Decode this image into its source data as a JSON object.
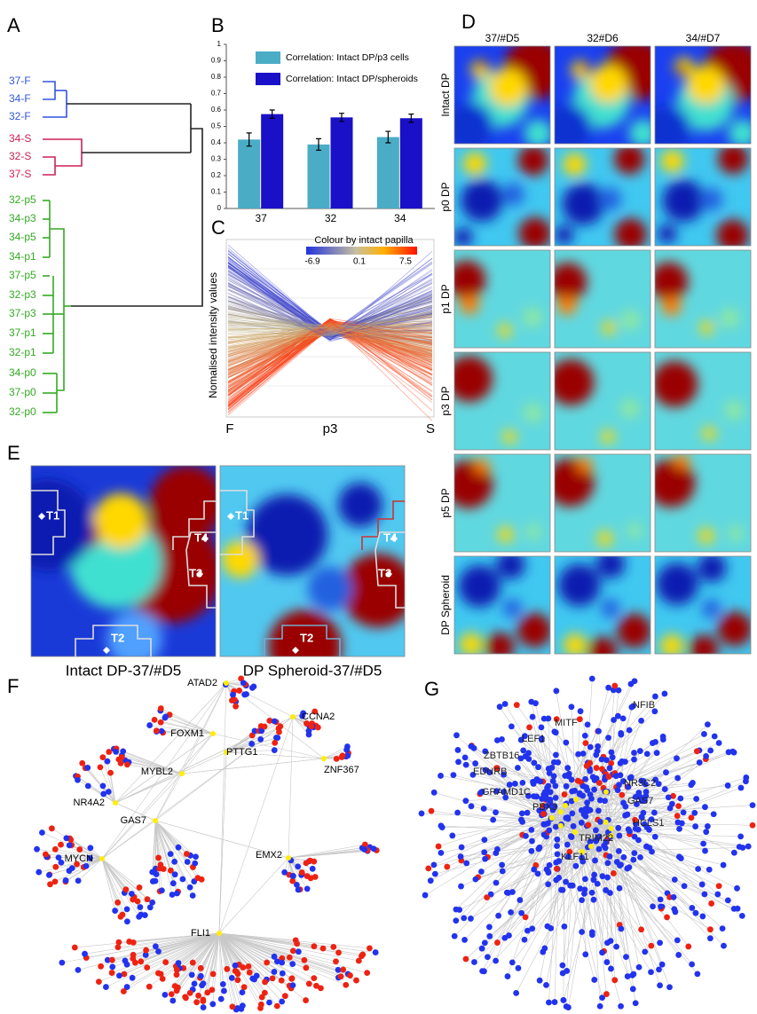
{
  "panel_labels": [
    "A",
    "B",
    "C",
    "D",
    "E",
    "F",
    "G"
  ],
  "panel_a": {
    "leaves": [
      "37-F",
      "34-F",
      "32-F",
      "34-S",
      "32-S",
      "37-S",
      "32-p5",
      "34-p3",
      "34-p5",
      "34-p1",
      "37-p5",
      "32-p3",
      "37-p3",
      "37-p1",
      "32-p1",
      "34-p0",
      "37-p0",
      "32-p0"
    ]
  },
  "chart_data": {
    "type": "bar",
    "categories": [
      "37",
      "32",
      "34"
    ],
    "series": [
      {
        "name": "Correlation: Intact DP/p3 cells",
        "color": "#4bacc6",
        "values": [
          0.42,
          0.39,
          0.435
        ],
        "errors": [
          0.04,
          0.035,
          0.035
        ]
      },
      {
        "name": "Correlation: Intact DP/spheroids",
        "color": "#1a10c8",
        "values": [
          0.575,
          0.555,
          0.55
        ],
        "errors": [
          0.025,
          0.025,
          0.025
        ]
      }
    ],
    "ylim": [
      0,
      1
    ],
    "yticks": [
      0,
      0.1,
      0.2,
      0.3,
      0.4,
      0.5,
      0.6,
      0.7,
      0.8,
      0.9,
      1
    ]
  },
  "panel_c": {
    "ylabel": "Nomalised intensity values",
    "x_labels": [
      "F",
      "p3",
      "S"
    ],
    "colorbar_title": "Colour by intact papilla",
    "colorbar_labels": [
      "-6.9",
      "0.1",
      "7.5"
    ]
  },
  "panel_d": {
    "columns": [
      "37/#D5",
      "32#D6",
      "34/#D7"
    ],
    "rows": [
      "Intact DP",
      "p0 DP",
      "p1 DP",
      "p3 DP",
      "p5 DP",
      "DP Spheroid"
    ]
  },
  "panel_e": {
    "maps": [
      {
        "caption": "Intact DP-37/#D5",
        "regions": [
          "T1",
          "T2",
          "T3",
          "T4"
        ]
      },
      {
        "caption": "DP Spheroid-37/#D5",
        "regions": [
          "T1",
          "T2",
          "T3",
          "T4"
        ]
      }
    ]
  },
  "panel_f": {
    "genes": [
      "ATAD2",
      "CCNA2",
      "FOXM1",
      "PTTG1",
      "ZNF367",
      "MYBL2",
      "NR4A2",
      "GAS7",
      "MYCN",
      "EMX2",
      "FLI1"
    ]
  },
  "panel_g": {
    "genes": [
      "NFIB",
      "MITF",
      "LEF1",
      "ZBTB16",
      "EDNRB",
      "GRAMD1C",
      "NR3C2",
      "GAS7",
      "PBX3",
      "HCLS1",
      "TRIM22",
      "KLF11"
    ]
  }
}
